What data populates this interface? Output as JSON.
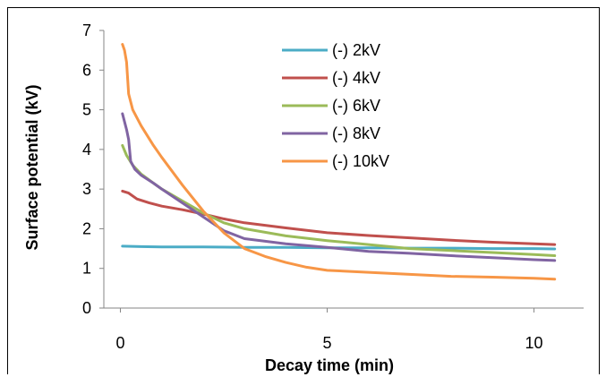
{
  "chart_data": {
    "type": "line",
    "title": "",
    "xlabel": "Decay time (min)",
    "ylabel": "Surface potential (kV)",
    "xlim": [
      -0.4,
      11.2
    ],
    "ylim": [
      0,
      7
    ],
    "x_ticks": [
      0,
      5,
      10
    ],
    "y_ticks": [
      0,
      1,
      2,
      3,
      4,
      5,
      6,
      7
    ],
    "grid": false,
    "legend_position": "upper-right-inside",
    "series": [
      {
        "name": "(-) 2kV",
        "color": "#4bacc6",
        "x": [
          0.05,
          0.5,
          1,
          2,
          3,
          4,
          5,
          6,
          7,
          8,
          9,
          10,
          10.5
        ],
        "y": [
          1.56,
          1.55,
          1.54,
          1.54,
          1.53,
          1.53,
          1.52,
          1.52,
          1.51,
          1.51,
          1.5,
          1.5,
          1.49
        ]
      },
      {
        "name": "(-) 4kV",
        "color": "#c0504d",
        "x": [
          0.05,
          0.2,
          0.4,
          0.7,
          1,
          1.5,
          2,
          2.5,
          3,
          4,
          5,
          6,
          7,
          8,
          9,
          10,
          10.5
        ],
        "y": [
          2.95,
          2.9,
          2.75,
          2.65,
          2.57,
          2.48,
          2.37,
          2.25,
          2.15,
          2.02,
          1.9,
          1.83,
          1.77,
          1.71,
          1.66,
          1.62,
          1.6
        ]
      },
      {
        "name": "(-) 6kV",
        "color": "#9bbb59",
        "x": [
          0.05,
          0.15,
          0.3,
          0.5,
          0.8,
          1,
          1.5,
          2,
          2.5,
          3,
          4,
          5,
          6,
          7,
          8,
          9,
          10,
          10.5
        ],
        "y": [
          4.1,
          3.85,
          3.6,
          3.38,
          3.15,
          3.0,
          2.7,
          2.4,
          2.15,
          2.0,
          1.82,
          1.7,
          1.6,
          1.5,
          1.45,
          1.4,
          1.35,
          1.32
        ]
      },
      {
        "name": "(-) 8kV",
        "color": "#8064a2",
        "x": [
          0.05,
          0.15,
          0.2,
          0.25,
          0.35,
          0.5,
          0.8,
          1,
          1.5,
          2,
          2.5,
          3,
          4,
          5,
          6,
          7,
          8,
          9,
          10,
          10.5
        ],
        "y": [
          4.9,
          4.5,
          4.25,
          3.7,
          3.5,
          3.35,
          3.15,
          3.0,
          2.65,
          2.3,
          1.95,
          1.75,
          1.62,
          1.53,
          1.43,
          1.38,
          1.32,
          1.27,
          1.22,
          1.2
        ]
      },
      {
        "name": "(-) 10kV",
        "color": "#f79646",
        "x": [
          0.05,
          0.1,
          0.15,
          0.2,
          0.3,
          0.5,
          0.8,
          1,
          1.5,
          2,
          2.5,
          3,
          3.5,
          4,
          4.5,
          5,
          6,
          7,
          8,
          9,
          10,
          10.5
        ],
        "y": [
          6.65,
          6.5,
          6.2,
          5.4,
          5.0,
          4.6,
          4.1,
          3.8,
          3.1,
          2.45,
          1.9,
          1.5,
          1.3,
          1.15,
          1.03,
          0.95,
          0.9,
          0.85,
          0.8,
          0.78,
          0.75,
          0.73
        ]
      }
    ]
  }
}
